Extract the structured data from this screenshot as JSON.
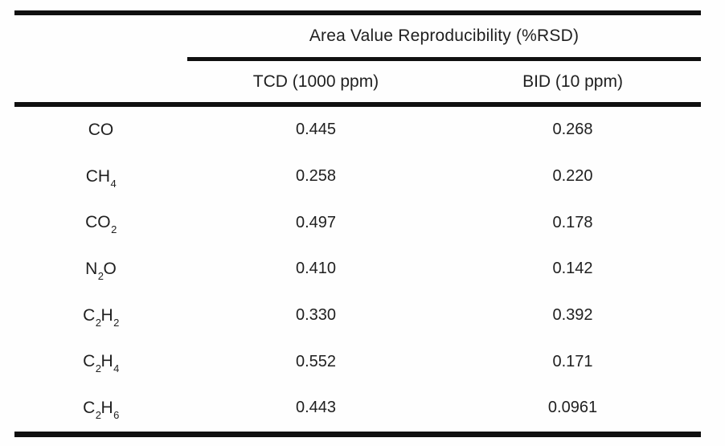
{
  "table": {
    "spanning_header": "Area Value Reproducibility (%RSD)",
    "columns": [
      "TCD (1000 ppm)",
      "BID (10 ppm)"
    ],
    "rows": [
      {
        "compound": "CO",
        "tcd": "0.445",
        "bid": "0.268"
      },
      {
        "compound": "CH_4",
        "tcd": "0.258",
        "bid": "0.220"
      },
      {
        "compound": "CO_2",
        "tcd": "0.497",
        "bid": "0.178"
      },
      {
        "compound": "N_2O",
        "tcd": "0.410",
        "bid": "0.142"
      },
      {
        "compound": "C_2H_2",
        "tcd": "0.330",
        "bid": "0.392"
      },
      {
        "compound": "C_2H_4",
        "tcd": "0.552",
        "bid": "0.171"
      },
      {
        "compound": "C_2H_6",
        "tcd": "0.443",
        "bid": "0.0961"
      }
    ]
  },
  "colors": {
    "text": "#1f1f1f",
    "rule": "#101010",
    "background": "#fefefe"
  }
}
